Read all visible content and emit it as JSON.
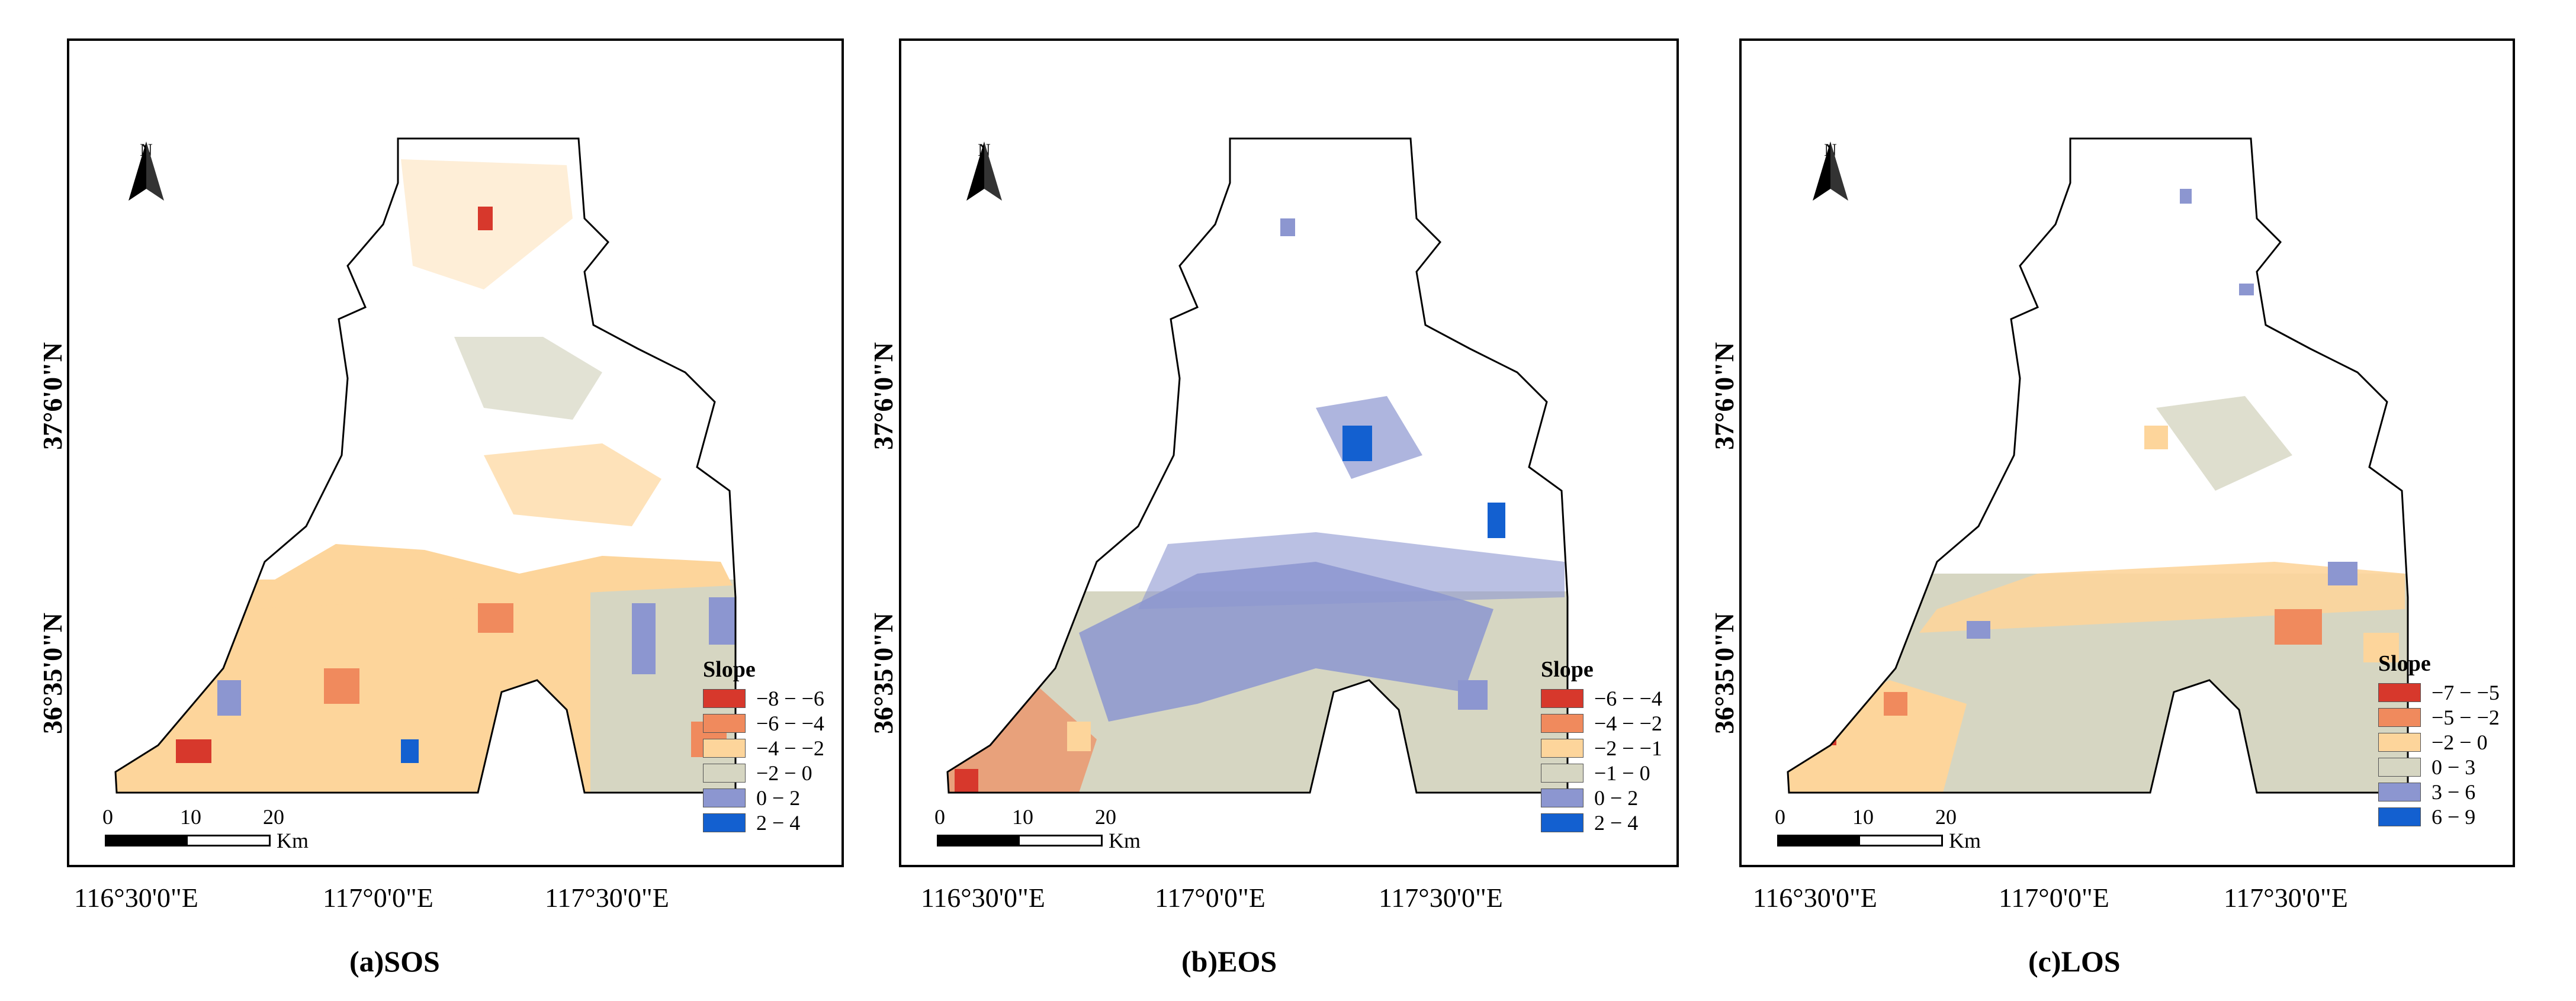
{
  "panels": [
    {
      "id": "sos",
      "caption": "(a)SOS",
      "north": "N",
      "lat_labels": [
        "37°6'0\"N",
        "36°35'0\"N"
      ],
      "lon_labels": [
        "116°30'0\"E",
        "117°0'0\"E",
        "117°30'0\"E"
      ],
      "legend": {
        "title": "Slope",
        "items": [
          {
            "label": "−8 − −6",
            "color": "#d7382c"
          },
          {
            "label": "−6 − −4",
            "color": "#f08a5d"
          },
          {
            "label": "−4 − −2",
            "color": "#fdd59b"
          },
          {
            "label": "−2 − 0",
            "color": "#d6d6c2"
          },
          {
            "label": "0 − 2",
            "color": "#8c96d0"
          },
          {
            "label": "2 − 4",
            "color": "#1360d0"
          }
        ]
      },
      "scale": {
        "ticks": [
          "0",
          "10",
          "20"
        ],
        "unit": "Km"
      }
    },
    {
      "id": "eos",
      "caption": "(b)EOS",
      "north": "N",
      "lat_labels": [
        "37°6'0\"N",
        "36°35'0\"N"
      ],
      "lon_labels": [
        "116°30'0\"E",
        "117°0'0\"E",
        "117°30'0\"E"
      ],
      "legend": {
        "title": "Slope",
        "items": [
          {
            "label": "−6 − −4",
            "color": "#d7382c"
          },
          {
            "label": "−4 − −2",
            "color": "#f08a5d"
          },
          {
            "label": "−2 − −1",
            "color": "#fdd59b"
          },
          {
            "label": "−1 − 0",
            "color": "#d6d6c2"
          },
          {
            "label": "0 − 2",
            "color": "#8c96d0"
          },
          {
            "label": "2 − 4",
            "color": "#1360d0"
          }
        ]
      },
      "scale": {
        "ticks": [
          "0",
          "10",
          "20"
        ],
        "unit": "Km"
      }
    },
    {
      "id": "los",
      "caption": "(c)LOS",
      "north": "N",
      "lat_labels": [
        "37°6'0\"N",
        "36°35'0\"N"
      ],
      "lon_labels": [
        "116°30'0\"E",
        "117°0'0\"E",
        "117°30'0\"E"
      ],
      "legend": {
        "title": "Slope",
        "items": [
          {
            "label": "−7 − −5",
            "color": "#d7382c"
          },
          {
            "label": "−5 − −2",
            "color": "#f08a5d"
          },
          {
            "label": "−2 − 0",
            "color": "#fdd59b"
          },
          {
            "label": "0 − 3",
            "color": "#d6d6c2"
          },
          {
            "label": "3 − 6",
            "color": "#8c96d0"
          },
          {
            "label": "6 − 9",
            "color": "#1360d0"
          }
        ]
      },
      "scale": {
        "ticks": [
          "0",
          "10",
          "20"
        ],
        "unit": "Km"
      }
    }
  ]
}
